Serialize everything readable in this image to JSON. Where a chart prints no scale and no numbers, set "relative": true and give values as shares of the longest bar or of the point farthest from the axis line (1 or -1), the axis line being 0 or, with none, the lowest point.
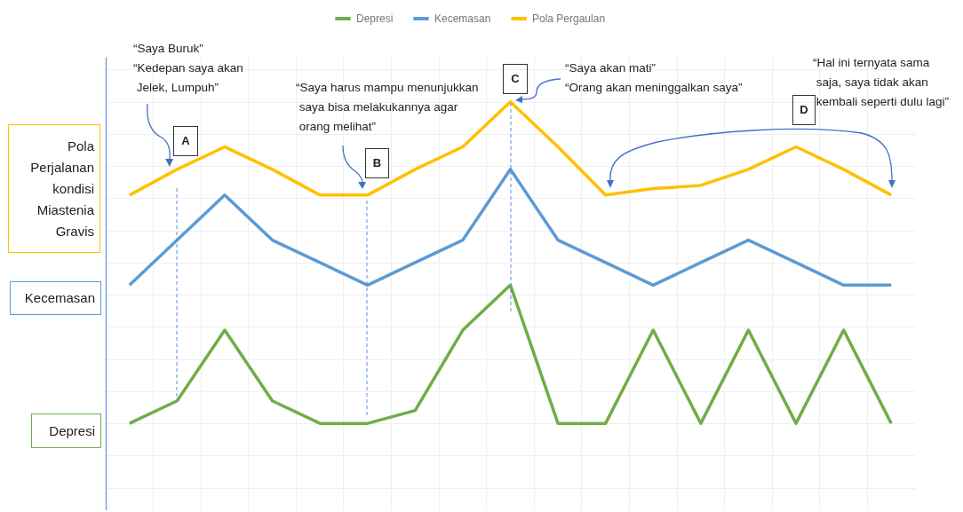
{
  "chart_data": {
    "type": "line",
    "relative": true,
    "grid": true,
    "legend": "top",
    "categories": [
      null,
      null,
      null,
      null,
      null,
      null,
      null,
      null,
      null,
      null,
      null,
      null,
      null,
      null,
      null,
      null,
      null
    ],
    "series": [
      {
        "name": "Depresi",
        "color": "#70ad47",
        "values": [
          0,
          0.07,
          0.29,
          0.07,
          0,
          0,
          0.04,
          0.29,
          0.43,
          0,
          0,
          0.29,
          0,
          0.29,
          0,
          0.29,
          0
        ]
      },
      {
        "name": "Kecemasan",
        "color": "#5b9bd5",
        "values": [
          0.43,
          0.57,
          0.71,
          0.57,
          0.5,
          0.43,
          0.5,
          0.57,
          0.79,
          0.57,
          0.5,
          0.43,
          0.5,
          0.57,
          0.5,
          0.43,
          0.43
        ]
      },
      {
        "name": "Pola Pergaulan",
        "color": "#ffc000",
        "values": [
          0.71,
          0.79,
          0.86,
          0.79,
          0.71,
          0.71,
          0.79,
          0.86,
          1,
          0.86,
          0.71,
          0.73,
          0.74,
          0.79,
          0.86,
          0.79,
          0.71
        ]
      }
    ],
    "annotations": [
      "Pola\nPerjalanan\nkondisi\nMiastenia\nGravis",
      "Kecemasan",
      "Depresi",
      "“Saya Buruk”\n“Kedepan saya akan\n Jelek, Lumpuh”",
      "A",
      "“Saya harus mampu menunjukkan\n saya bisa melakukannya agar\n orang melihat”",
      "B",
      "C",
      "“Saya akan mati”\n“Orang akan meninggalkan saya”",
      "D",
      "“Hal ini ternyata sama\n saja, saya tidak akan\n kembali seperti dulu lagi”"
    ]
  }
}
